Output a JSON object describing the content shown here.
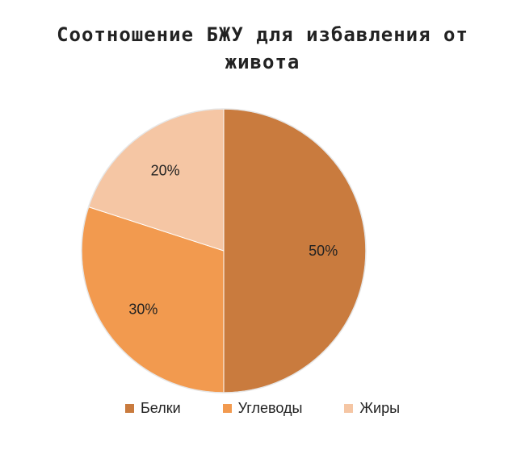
{
  "chart_data": {
    "type": "pie",
    "title_lines": [
      "Соотношение БЖУ для избавления от",
      "живота"
    ],
    "categories": [
      "Белки",
      "Углеводы",
      "Жиры"
    ],
    "values": [
      50,
      30,
      20
    ],
    "labels": [
      "50%",
      "30%",
      "20%"
    ],
    "colors": [
      "#C97B3E",
      "#F29A4F",
      "#F5C6A4"
    ],
    "legend_position": "bottom"
  }
}
